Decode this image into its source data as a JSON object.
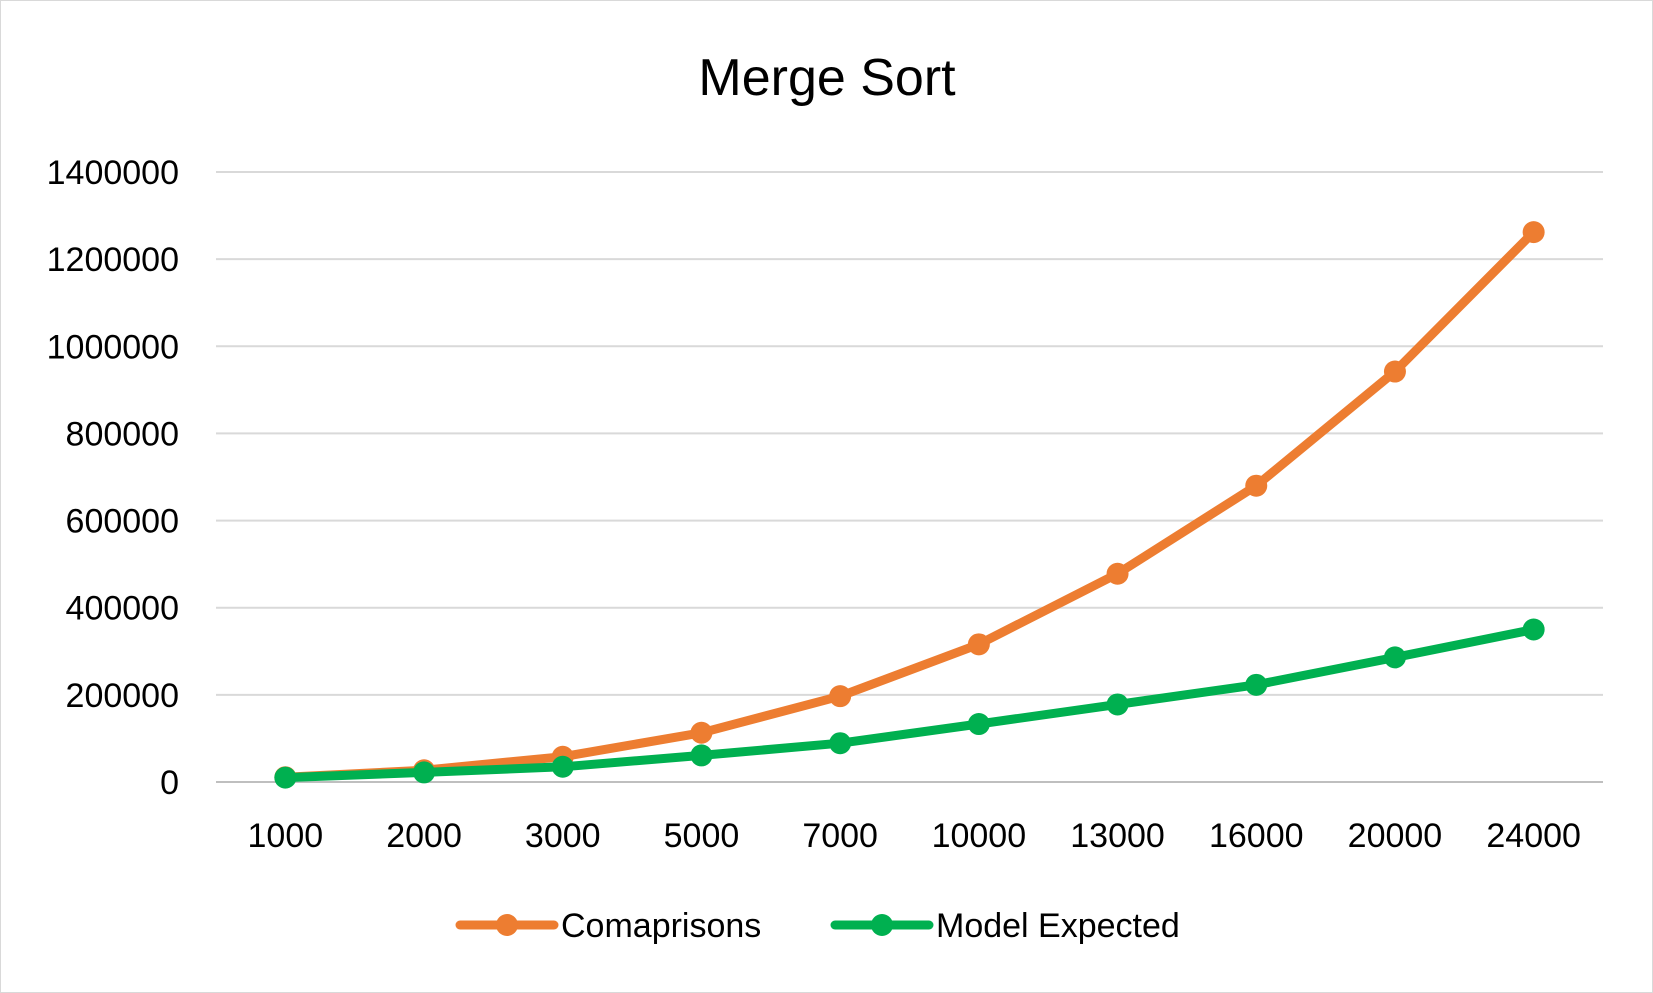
{
  "chart_data": {
    "type": "line",
    "title": "Merge Sort",
    "xlabel": "",
    "ylabel": "",
    "categories": [
      "1000",
      "2000",
      "3000",
      "5000",
      "7000",
      "10000",
      "13000",
      "16000",
      "20000",
      "24000"
    ],
    "y_ticks": [
      "0",
      "200000",
      "400000",
      "600000",
      "800000",
      "1000000",
      "1200000",
      "1400000"
    ],
    "ylim": [
      0,
      1400000
    ],
    "grid": true,
    "legend_position": "bottom",
    "series": [
      {
        "name": "Comaprisons",
        "color": "#ED7D31",
        "values": [
          11000,
          27000,
          58000,
          113000,
          197000,
          316000,
          478000,
          680000,
          942000,
          1262000
        ]
      },
      {
        "name": "Model Expected",
        "color": "#00B050",
        "values": [
          10000,
          22000,
          35000,
          61000,
          89000,
          133000,
          178000,
          223000,
          286000,
          350000
        ]
      }
    ]
  }
}
